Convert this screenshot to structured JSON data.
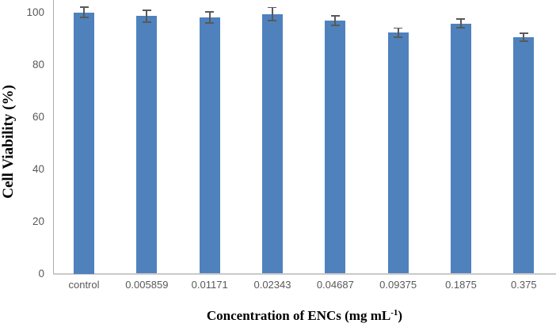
{
  "chart_data": {
    "type": "bar",
    "title": "",
    "ylabel": "Cell Viability (%)",
    "xlabel": "Concentration of ENCs (mg mL-1)",
    "xlabel_parts": {
      "prefix": "Concentration of ENCs (mg mL",
      "sup": "-1",
      "suffix": ")"
    },
    "categories": [
      "control",
      "0.005859",
      "0.01171",
      "0.02343",
      "0.04687",
      "0.09375",
      "0.1875",
      "0.375"
    ],
    "values": [
      100,
      98.5,
      98,
      99.3,
      96.8,
      92.2,
      95.7,
      90.5
    ],
    "errors": [
      2.2,
      2.6,
      2.4,
      2.8,
      2.1,
      2.0,
      1.9,
      1.8
    ],
    "y_ticks": [
      0,
      20,
      40,
      60,
      80,
      100
    ],
    "ylim": [
      0,
      100
    ],
    "grid": false,
    "legend": false,
    "bar_color": "#4F81BD",
    "error_bar_color": "#595959",
    "y_axis_line_color": "#ABABAB",
    "x_axis_line_color": "#C9C9C9",
    "tick_label_color": "#595959"
  }
}
